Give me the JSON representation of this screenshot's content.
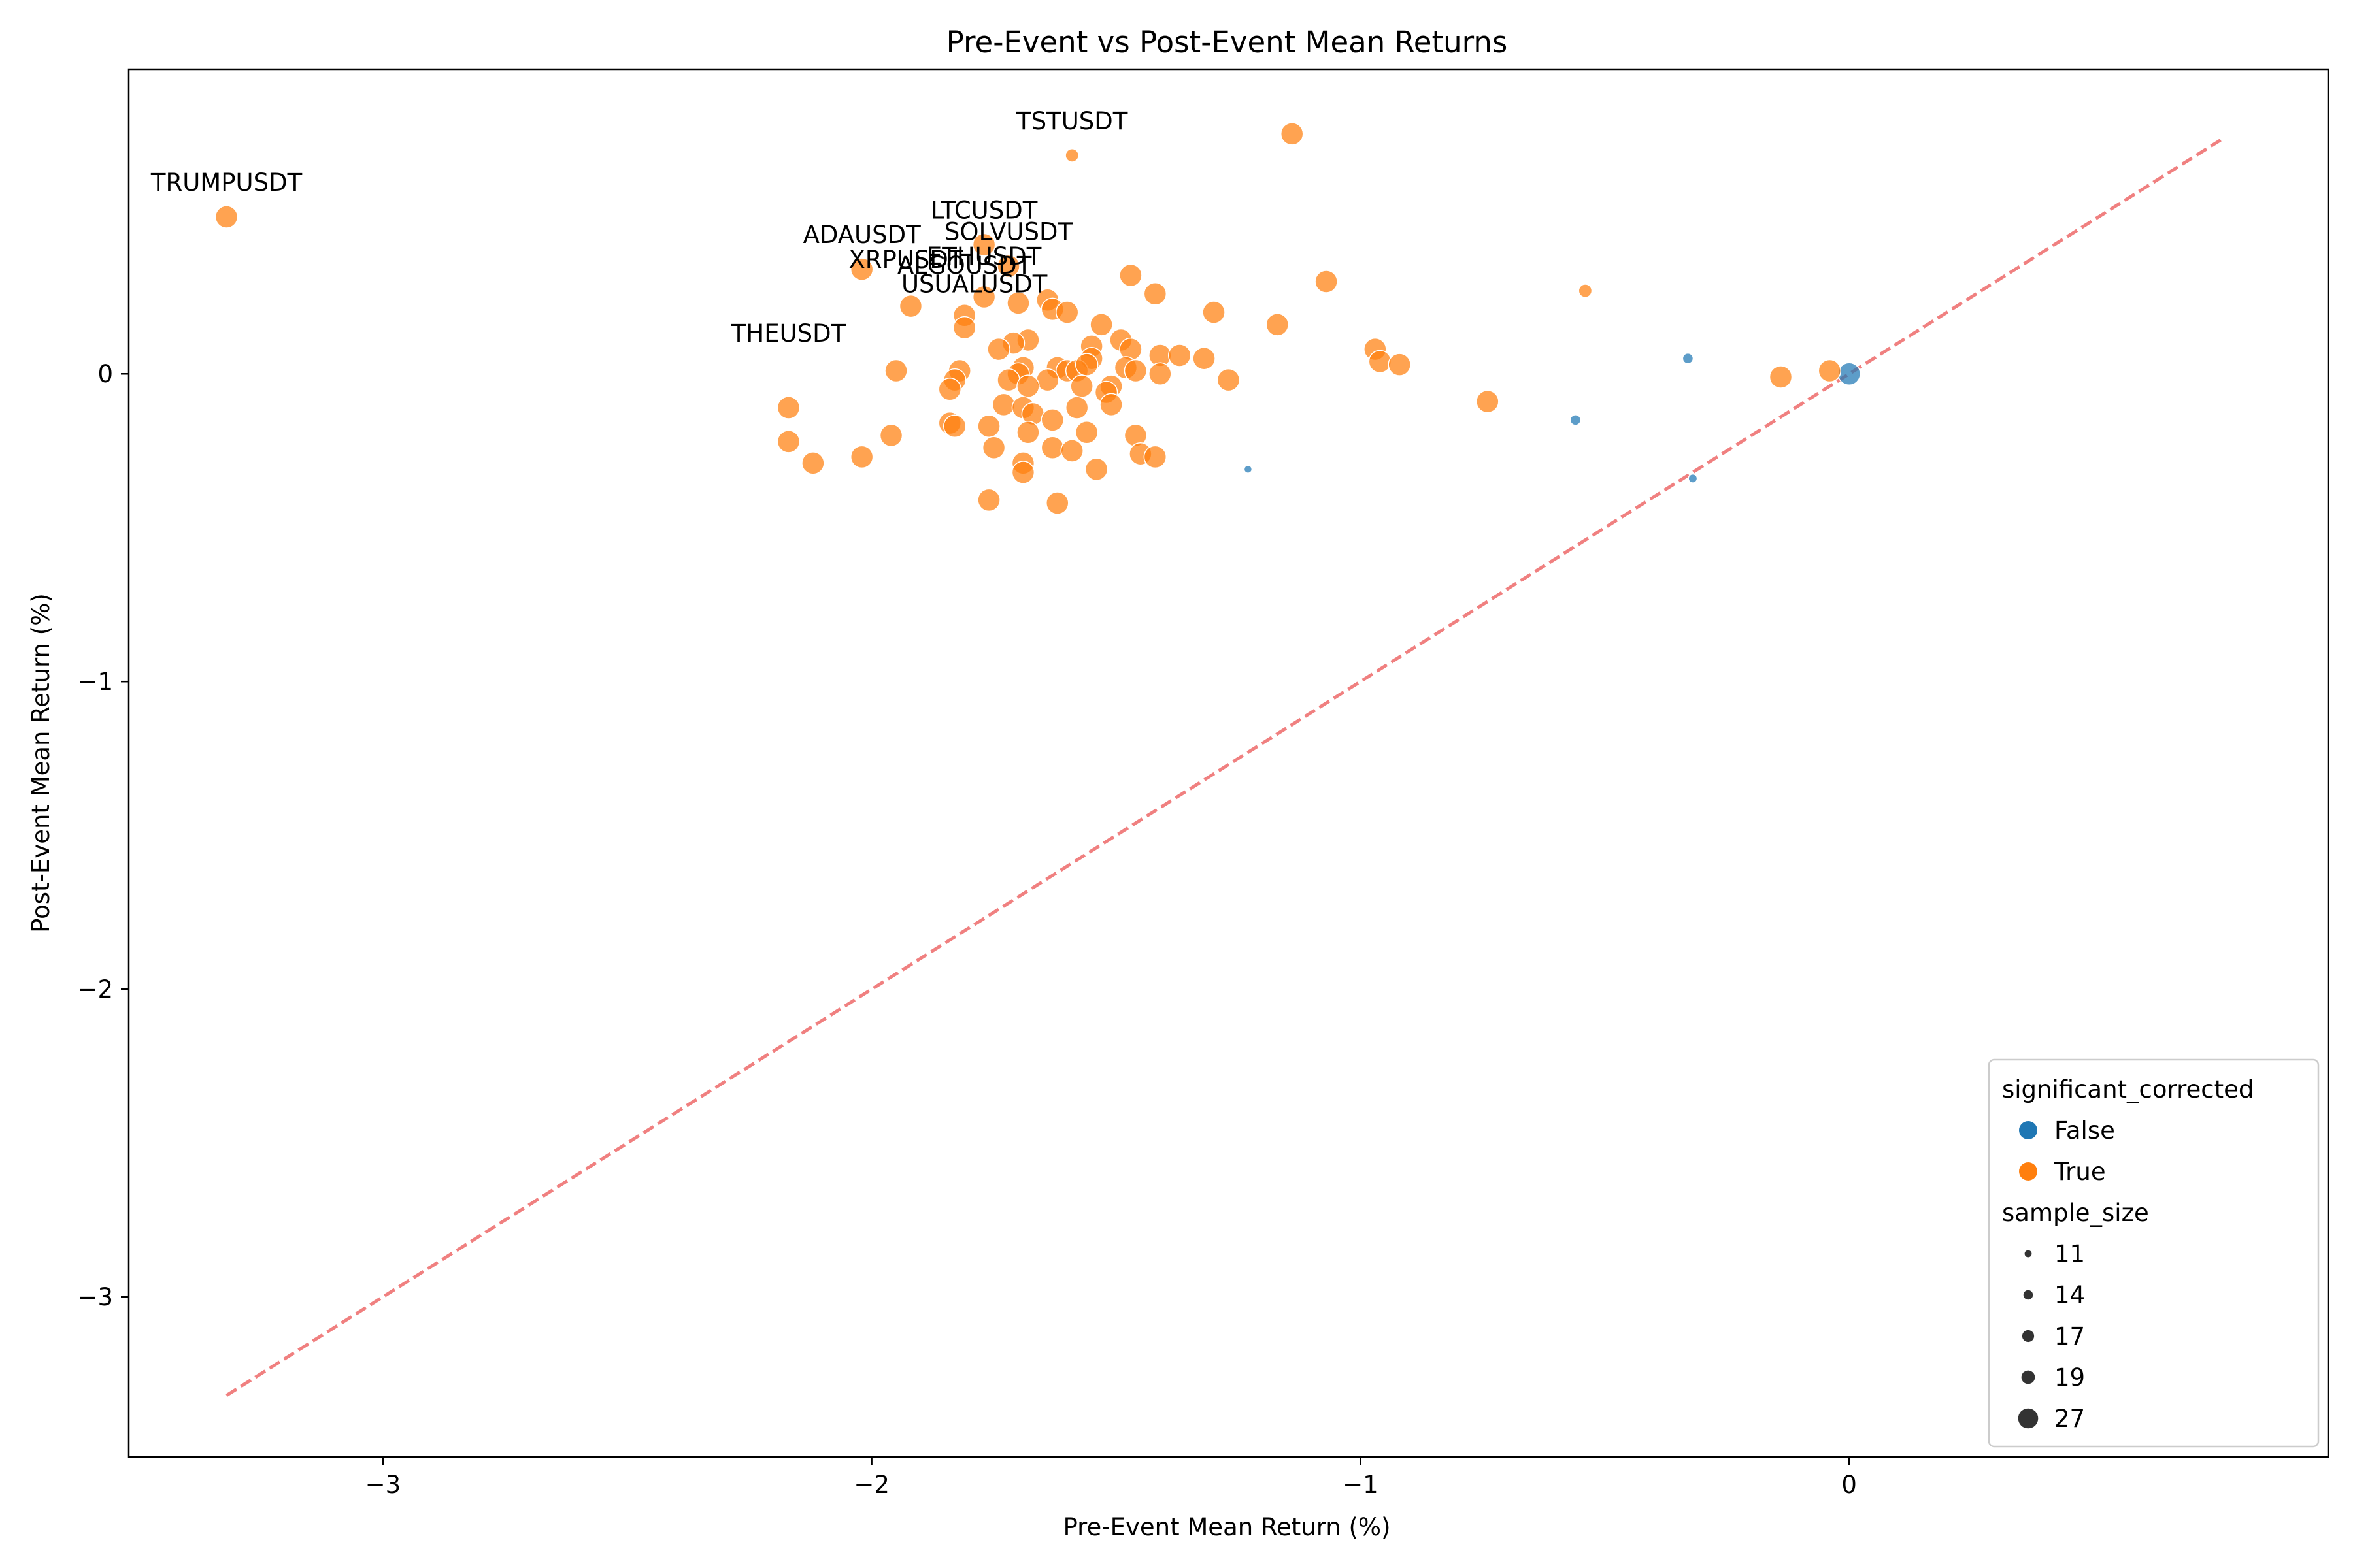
{
  "chart_data": {
    "type": "scatter",
    "title": "Pre-Event vs Post-Event Mean Returns",
    "xlabel": "Pre-Event Mean Return (%)",
    "ylabel": "Post-Event Mean Return (%)",
    "xlim": [
      -3.52,
      0.98
    ],
    "ylim": [
      -3.52,
      0.99
    ],
    "xticks": [
      {
        "v": -3,
        "label": "−3"
      },
      {
        "v": -2,
        "label": "−2"
      },
      {
        "v": -1,
        "label": "−1"
      },
      {
        "v": 0,
        "label": "0"
      }
    ],
    "yticks": [
      {
        "v": -3,
        "label": "−3"
      },
      {
        "v": -2,
        "label": "−2"
      },
      {
        "v": -1,
        "label": "−1"
      },
      {
        "v": 0,
        "label": "0"
      }
    ],
    "grid": false,
    "reference_line": {
      "x": [
        -3.32,
        0.76
      ],
      "y": [
        -3.32,
        0.76
      ],
      "color": "#f08080",
      "style": "dashed"
    },
    "hue_colors": {
      "False": "#1f77b4",
      "True": "#ff7f0e"
    },
    "legend": {
      "placement": "lower right",
      "hue_title": "significant_corrected",
      "hue_entries": [
        {
          "label": "False",
          "key": "False"
        },
        {
          "label": "True",
          "key": "True"
        }
      ],
      "size_title": "sample_size",
      "size_entries": [
        {
          "label": "11",
          "size": 11
        },
        {
          "label": "14",
          "size": 14
        },
        {
          "label": "17",
          "size": 17
        },
        {
          "label": "19",
          "size": 19
        },
        {
          "label": "27",
          "size": 27
        }
      ]
    },
    "annotations": [
      {
        "text": "TRUMPUSDT",
        "x": -3.32,
        "y": 0.51
      },
      {
        "text": "TSTUSDT",
        "x": -1.59,
        "y": 0.71
      },
      {
        "text": "LTCUSDT",
        "x": -1.77,
        "y": 0.42
      },
      {
        "text": "SOLVUSDT",
        "x": -1.72,
        "y": 0.35
      },
      {
        "text": "ADAUSDT",
        "x": -2.02,
        "y": 0.34
      },
      {
        "text": "ETHUSDT",
        "x": -1.77,
        "y": 0.27
      },
      {
        "text": "XRPUSDT",
        "x": -1.93,
        "y": 0.26
      },
      {
        "text": "ALGOUSDT",
        "x": -1.81,
        "y": 0.24
      },
      {
        "text": "USUALUSDT",
        "x": -1.79,
        "y": 0.18
      },
      {
        "text": "THEUSDT",
        "x": -2.17,
        "y": 0.02
      }
    ],
    "series": [
      {
        "name": "False",
        "points": [
          {
            "x": -0.33,
            "y": 0.05,
            "size": 14
          },
          {
            "x": -0.56,
            "y": -0.15,
            "size": 14
          },
          {
            "x": -1.23,
            "y": -0.31,
            "size": 11
          },
          {
            "x": -0.32,
            "y": -0.34,
            "size": 12
          },
          {
            "x": 0.0,
            "y": 0.0,
            "size": 27
          }
        ]
      },
      {
        "name": "True",
        "points": [
          {
            "x": -3.32,
            "y": 0.51,
            "size": 27
          },
          {
            "x": -1.59,
            "y": 0.71,
            "size": 17
          },
          {
            "x": -1.14,
            "y": 0.78,
            "size": 27
          },
          {
            "x": -0.54,
            "y": 0.27,
            "size": 17
          },
          {
            "x": -1.77,
            "y": 0.42,
            "size": 27
          },
          {
            "x": -1.72,
            "y": 0.35,
            "size": 27
          },
          {
            "x": -2.02,
            "y": 0.34,
            "size": 27
          },
          {
            "x": -1.92,
            "y": 0.22,
            "size": 27
          },
          {
            "x": -1.77,
            "y": 0.25,
            "size": 27
          },
          {
            "x": -1.7,
            "y": 0.23,
            "size": 27
          },
          {
            "x": -1.81,
            "y": 0.19,
            "size": 27
          },
          {
            "x": -1.81,
            "y": 0.15,
            "size": 27
          },
          {
            "x": -1.64,
            "y": 0.24,
            "size": 27
          },
          {
            "x": -1.63,
            "y": 0.21,
            "size": 27
          },
          {
            "x": -1.6,
            "y": 0.2,
            "size": 27
          },
          {
            "x": -1.47,
            "y": 0.32,
            "size": 27
          },
          {
            "x": -1.42,
            "y": 0.26,
            "size": 27
          },
          {
            "x": -1.3,
            "y": 0.2,
            "size": 27
          },
          {
            "x": -1.17,
            "y": 0.16,
            "size": 27
          },
          {
            "x": -1.07,
            "y": 0.3,
            "size": 27
          },
          {
            "x": -1.53,
            "y": 0.16,
            "size": 27
          },
          {
            "x": -1.49,
            "y": 0.11,
            "size": 27
          },
          {
            "x": -1.47,
            "y": 0.08,
            "size": 27
          },
          {
            "x": -1.55,
            "y": 0.09,
            "size": 27
          },
          {
            "x": -1.68,
            "y": 0.11,
            "size": 27
          },
          {
            "x": -1.71,
            "y": 0.1,
            "size": 27
          },
          {
            "x": -1.74,
            "y": 0.08,
            "size": 27
          },
          {
            "x": -1.55,
            "y": 0.05,
            "size": 27
          },
          {
            "x": -1.41,
            "y": 0.06,
            "size": 27
          },
          {
            "x": -1.37,
            "y": 0.06,
            "size": 27
          },
          {
            "x": -1.32,
            "y": 0.05,
            "size": 27
          },
          {
            "x": -0.97,
            "y": 0.08,
            "size": 27
          },
          {
            "x": -0.96,
            "y": 0.04,
            "size": 27
          },
          {
            "x": -0.92,
            "y": 0.03,
            "size": 27
          },
          {
            "x": -1.95,
            "y": 0.01,
            "size": 27
          },
          {
            "x": -1.82,
            "y": 0.01,
            "size": 27
          },
          {
            "x": -1.83,
            "y": -0.02,
            "size": 27
          },
          {
            "x": -1.69,
            "y": 0.02,
            "size": 27
          },
          {
            "x": -1.7,
            "y": 0.0,
            "size": 27
          },
          {
            "x": -1.72,
            "y": -0.02,
            "size": 27
          },
          {
            "x": -1.62,
            "y": 0.02,
            "size": 27
          },
          {
            "x": -1.6,
            "y": 0.01,
            "size": 27
          },
          {
            "x": -1.58,
            "y": 0.01,
            "size": 27
          },
          {
            "x": -1.56,
            "y": 0.03,
            "size": 27
          },
          {
            "x": -1.48,
            "y": 0.02,
            "size": 27
          },
          {
            "x": -1.46,
            "y": 0.01,
            "size": 27
          },
          {
            "x": -1.41,
            "y": 0.0,
            "size": 27
          },
          {
            "x": -1.64,
            "y": -0.02,
            "size": 27
          },
          {
            "x": -1.68,
            "y": -0.04,
            "size": 27
          },
          {
            "x": -1.51,
            "y": -0.04,
            "size": 27
          },
          {
            "x": -1.52,
            "y": -0.06,
            "size": 27
          },
          {
            "x": -1.57,
            "y": -0.04,
            "size": 27
          },
          {
            "x": -1.27,
            "y": -0.02,
            "size": 27
          },
          {
            "x": -0.74,
            "y": -0.09,
            "size": 27
          },
          {
            "x": -0.14,
            "y": -0.01,
            "size": 27
          },
          {
            "x": -0.04,
            "y": 0.01,
            "size": 27
          },
          {
            "x": -1.84,
            "y": -0.05,
            "size": 27
          },
          {
            "x": -2.17,
            "y": -0.11,
            "size": 27
          },
          {
            "x": -1.73,
            "y": -0.1,
            "size": 27
          },
          {
            "x": -1.69,
            "y": -0.11,
            "size": 27
          },
          {
            "x": -1.67,
            "y": -0.13,
            "size": 27
          },
          {
            "x": -1.63,
            "y": -0.15,
            "size": 27
          },
          {
            "x": -1.58,
            "y": -0.11,
            "size": 27
          },
          {
            "x": -1.51,
            "y": -0.1,
            "size": 27
          },
          {
            "x": -1.84,
            "y": -0.16,
            "size": 27
          },
          {
            "x": -1.83,
            "y": -0.17,
            "size": 27
          },
          {
            "x": -1.76,
            "y": -0.17,
            "size": 27
          },
          {
            "x": -1.68,
            "y": -0.19,
            "size": 27
          },
          {
            "x": -1.56,
            "y": -0.19,
            "size": 27
          },
          {
            "x": -1.46,
            "y": -0.2,
            "size": 27
          },
          {
            "x": -1.96,
            "y": -0.2,
            "size": 27
          },
          {
            "x": -2.17,
            "y": -0.22,
            "size": 27
          },
          {
            "x": -1.75,
            "y": -0.24,
            "size": 27
          },
          {
            "x": -1.63,
            "y": -0.24,
            "size": 27
          },
          {
            "x": -1.59,
            "y": -0.25,
            "size": 27
          },
          {
            "x": -1.45,
            "y": -0.26,
            "size": 27
          },
          {
            "x": -1.42,
            "y": -0.27,
            "size": 27
          },
          {
            "x": -2.02,
            "y": -0.27,
            "size": 27
          },
          {
            "x": -2.12,
            "y": -0.29,
            "size": 27
          },
          {
            "x": -1.69,
            "y": -0.29,
            "size": 27
          },
          {
            "x": -1.69,
            "y": -0.32,
            "size": 27
          },
          {
            "x": -1.54,
            "y": -0.31,
            "size": 27
          },
          {
            "x": -1.76,
            "y": -0.41,
            "size": 27
          },
          {
            "x": -1.62,
            "y": -0.42,
            "size": 27
          }
        ]
      }
    ]
  }
}
